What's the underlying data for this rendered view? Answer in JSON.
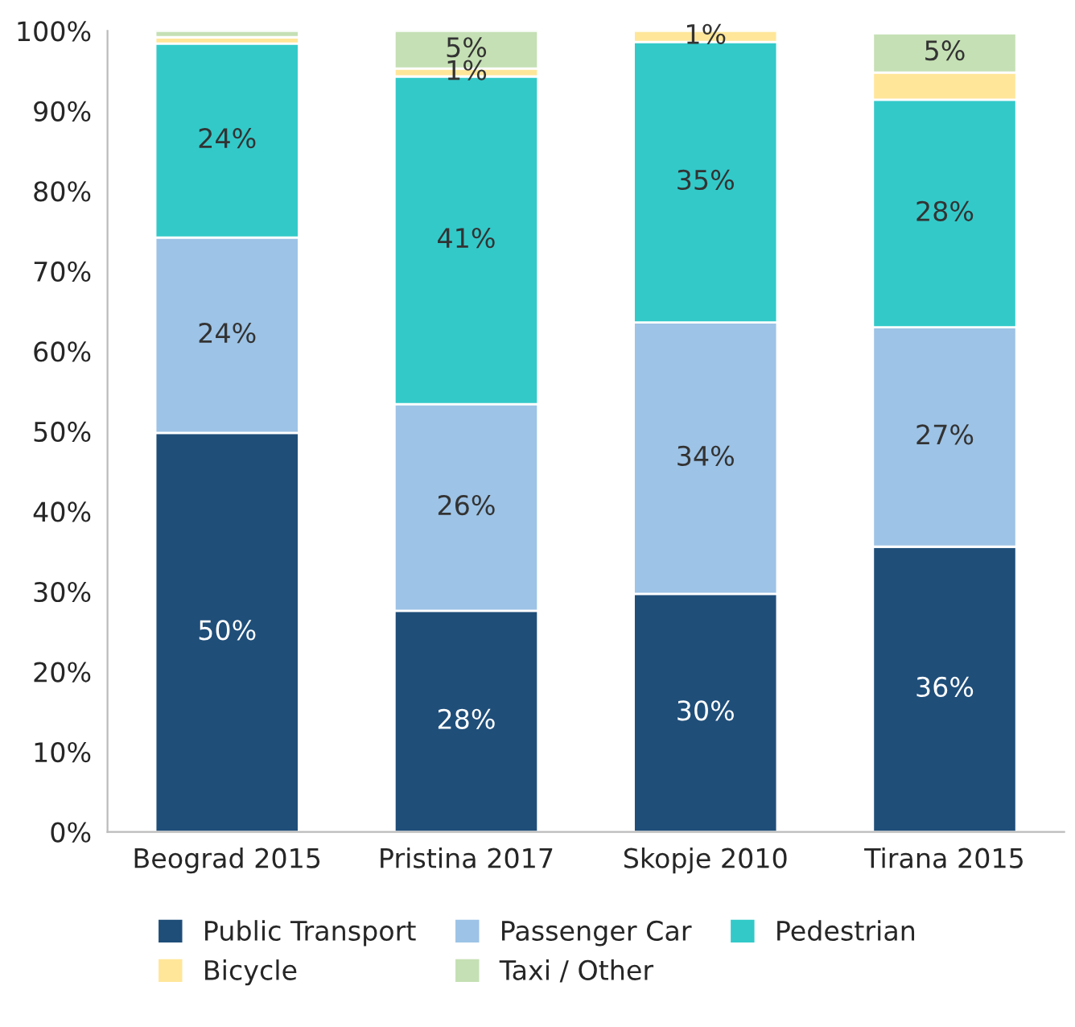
{
  "chart_data": {
    "type": "bar",
    "stacked": true,
    "categories": [
      "Beograd 2015",
      "Pristina 2017",
      "Skopje 2010",
      "Tirana 2015"
    ],
    "series": [
      {
        "name": "Public Transport",
        "color": "#1f4e79",
        "values": [
          49.8,
          27.6,
          29.7,
          35.6
        ],
        "value_labels": [
          "50%",
          "28%",
          "30%",
          "36%"
        ]
      },
      {
        "name": "Passenger Car",
        "color": "#9dc3e6",
        "values": [
          24.4,
          25.8,
          33.9,
          27.4
        ],
        "value_labels": [
          "24%",
          "26%",
          "34%",
          "27%"
        ]
      },
      {
        "name": "Pedestrian",
        "color": "#33c9c9",
        "values": [
          24.2,
          40.9,
          35.0,
          28.4
        ],
        "value_labels": [
          "24%",
          "41%",
          "35%",
          "28%"
        ]
      },
      {
        "name": "Bicycle",
        "color": "#ffe699",
        "values": [
          0.8,
          1.0,
          1.4,
          3.4
        ],
        "value_labels": [
          null,
          "1%",
          "1%",
          null
        ]
      },
      {
        "name": "Taxi / Other",
        "color": "#c5e0b4",
        "values": [
          0.8,
          4.7,
          null,
          4.9
        ],
        "value_labels": [
          null,
          "5%",
          null,
          "5%"
        ]
      }
    ],
    "ylim": [
      0,
      100
    ],
    "yticks": [
      {
        "value": 0,
        "label": "0%"
      },
      {
        "value": 10,
        "label": "10%"
      },
      {
        "value": 20,
        "label": "20%"
      },
      {
        "value": 30,
        "label": "30%"
      },
      {
        "value": 40,
        "label": "40%"
      },
      {
        "value": 50,
        "label": "50%"
      },
      {
        "value": 60,
        "label": "60%"
      },
      {
        "value": 70,
        "label": "70%"
      },
      {
        "value": 80,
        "label": "80%"
      },
      {
        "value": 90,
        "label": "90%"
      },
      {
        "value": 100,
        "label": "100%"
      }
    ],
    "grid": false,
    "legend": "bottom"
  }
}
